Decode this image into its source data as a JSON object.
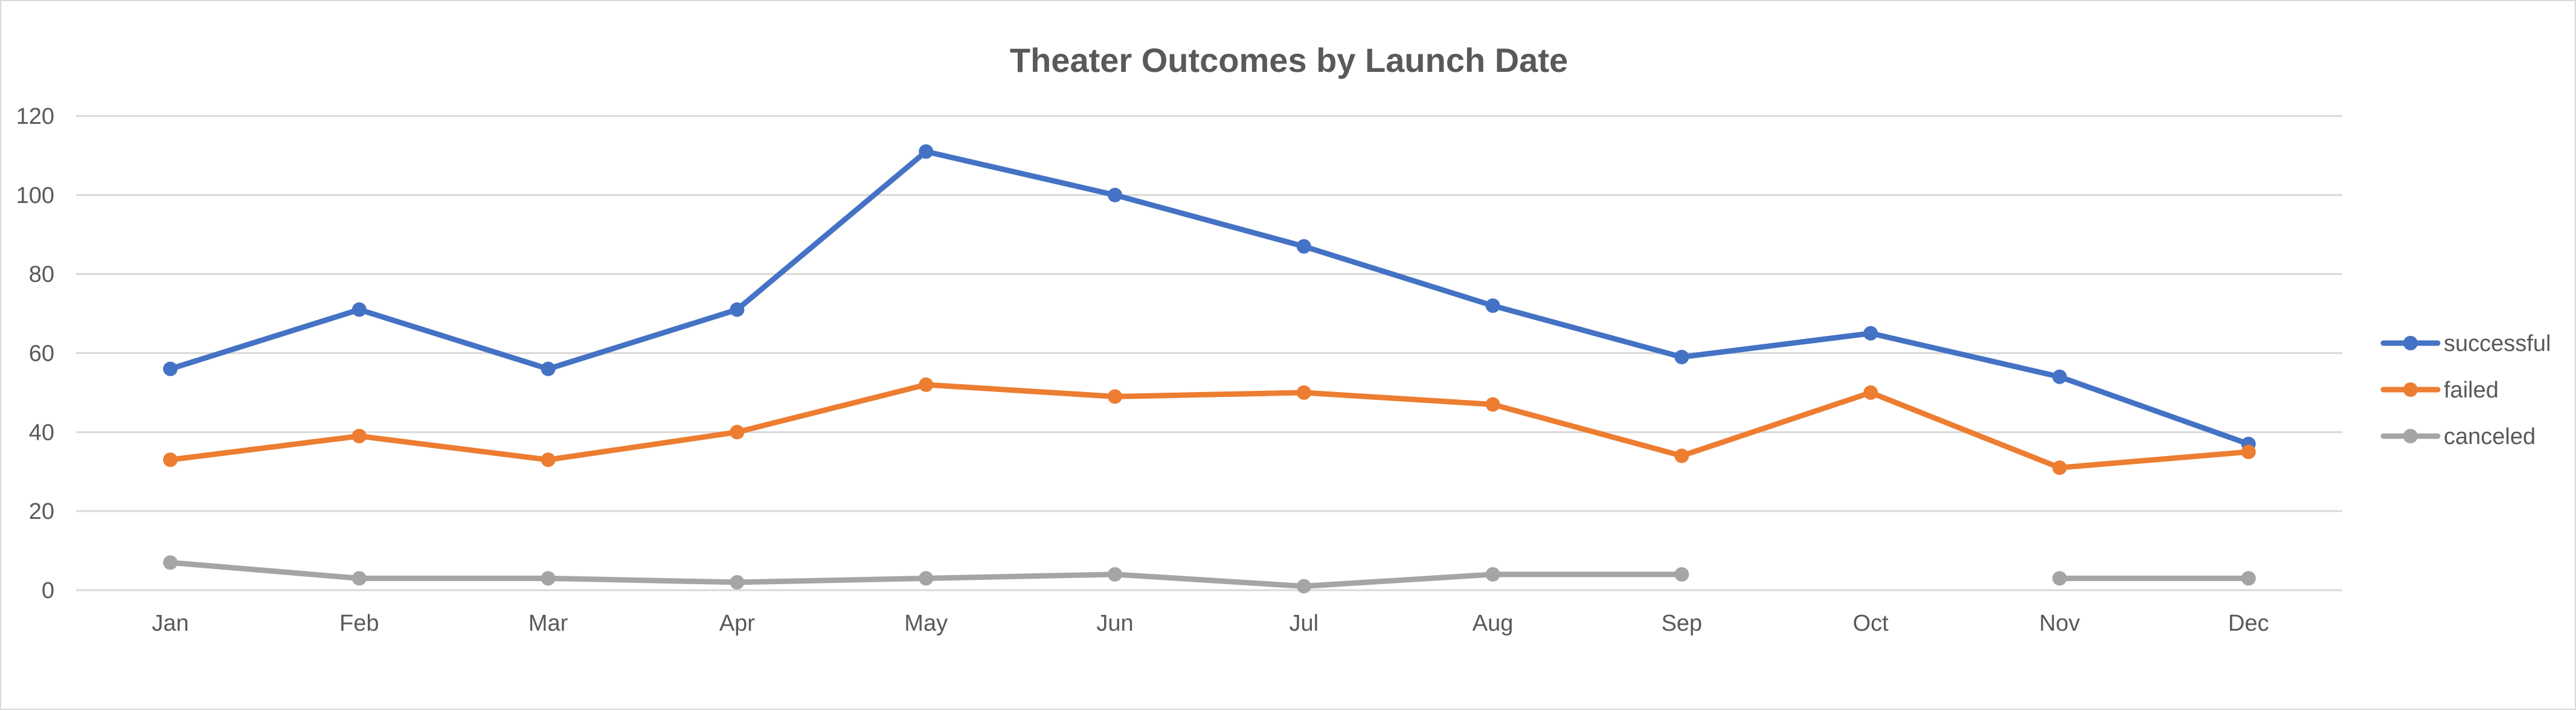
{
  "chart_data": {
    "type": "line",
    "title": "Theater Outcomes by Launch Date",
    "xlabel": "",
    "ylabel": "",
    "categories": [
      "Jan",
      "Feb",
      "Mar",
      "Apr",
      "May",
      "Jun",
      "Jul",
      "Aug",
      "Sep",
      "Oct",
      "Nov",
      "Dec"
    ],
    "ylim": [
      0,
      120
    ],
    "yticks": [
      0,
      20,
      40,
      60,
      80,
      100,
      120
    ],
    "grid": true,
    "legend": "right",
    "series": [
      {
        "name": "successful",
        "color": "#4472C4",
        "values": [
          56,
          71,
          56,
          71,
          111,
          100,
          87,
          72,
          59,
          65,
          54,
          37
        ]
      },
      {
        "name": "failed",
        "color": "#ED7D31",
        "values": [
          33,
          39,
          33,
          40,
          52,
          49,
          50,
          47,
          34,
          50,
          31,
          35
        ]
      },
      {
        "name": "canceled",
        "color": "#A5A5A5",
        "values": [
          7,
          3,
          3,
          2,
          3,
          4,
          1,
          4,
          4,
          null,
          3,
          3
        ]
      }
    ]
  }
}
